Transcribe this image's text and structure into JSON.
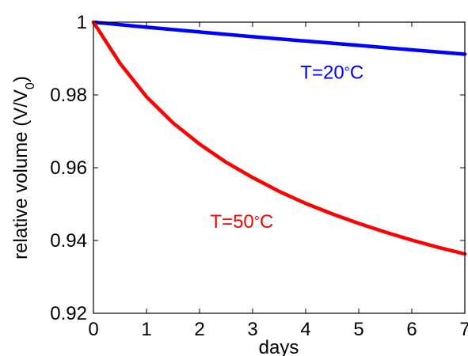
{
  "chart_data": {
    "type": "line",
    "title": "",
    "xlabel": "days",
    "ylabel_main": "relative volume (V/V",
    "ylabel_sub": "0",
    "ylabel_end": ")",
    "xlim": [
      0,
      7
    ],
    "ylim": [
      0.92,
      1.0
    ],
    "x_ticks": [
      0,
      1,
      2,
      3,
      4,
      5,
      6,
      7
    ],
    "x_tick_labels": [
      "0",
      "1",
      "2",
      "3",
      "4",
      "5",
      "6",
      "7"
    ],
    "y_ticks": [
      0.92,
      0.94,
      0.96,
      0.98,
      1.0
    ],
    "y_tick_labels": [
      "0.92",
      "0.94",
      "0.96",
      "0.98",
      "1"
    ],
    "grid": false,
    "series": [
      {
        "color": "#0000ff",
        "x": [
          0,
          1,
          2,
          3,
          4,
          5,
          6,
          7
        ],
        "y": [
          1.0,
          0.9986,
          0.9973,
          0.996,
          0.9948,
          0.9936,
          0.9924,
          0.9912
        ]
      },
      {
        "color": "#ff0000",
        "x": [
          0,
          0.5,
          1,
          1.5,
          2,
          2.5,
          3,
          3.5,
          4,
          4.5,
          5,
          5.5,
          6,
          6.5,
          7
        ],
        "y": [
          1.0,
          0.9887,
          0.9795,
          0.9723,
          0.9665,
          0.9615,
          0.9573,
          0.9535,
          0.9502,
          0.9473,
          0.9447,
          0.9423,
          0.9401,
          0.9381,
          0.9363
        ]
      }
    ],
    "annotations": [
      {
        "text_main": "T=20",
        "degree": "°",
        "text_end": "C",
        "color": "#0000ff",
        "x": 3.9,
        "y": 0.9845
      },
      {
        "text_main": "T=50",
        "degree": "°",
        "text_end": "C",
        "color": "#ff0000",
        "x": 2.2,
        "y": 0.9435
      }
    ]
  }
}
